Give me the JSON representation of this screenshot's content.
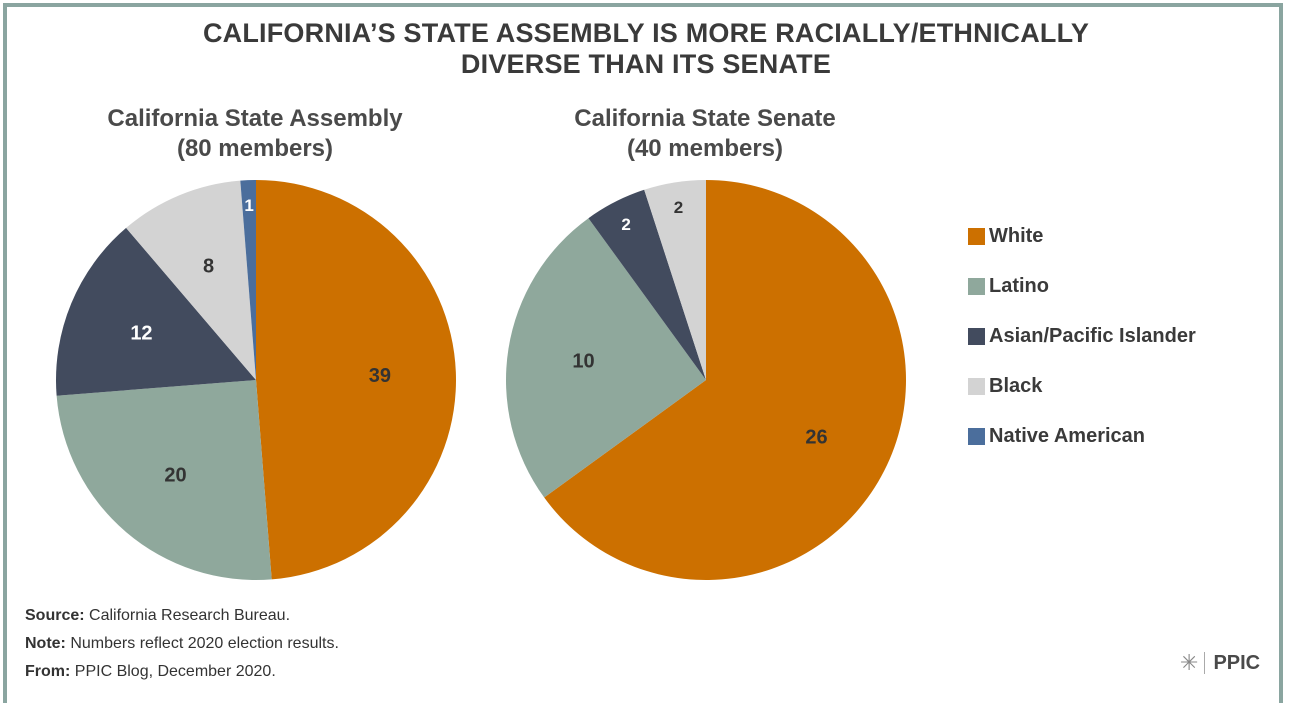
{
  "title_line1": "CALIFORNIA’S STATE ASSEMBLY IS MORE RACIALLY/ETHNICALLY",
  "title_line2": "DIVERSE THAN ITS SENATE",
  "colors": {
    "White": "#cc7000",
    "Latino": "#8fa89c",
    "Asian/Pacific Islander": "#424b5e",
    "Black": "#d3d3d3",
    "Native American": "#4b6e9c"
  },
  "chart_data": [
    {
      "type": "pie",
      "title": "California State Assembly",
      "subtitle": "(80 members)",
      "categories": [
        "White",
        "Latino",
        "Asian/Pacific Islander",
        "Black",
        "Native American"
      ],
      "values": [
        39,
        20,
        12,
        8,
        1
      ]
    },
    {
      "type": "pie",
      "title": "California State Senate",
      "subtitle": "(40 members)",
      "categories": [
        "White",
        "Latino",
        "Asian/Pacific Islander",
        "Black"
      ],
      "values": [
        26,
        10,
        2,
        2
      ]
    }
  ],
  "legend": [
    "White",
    "Latino",
    "Asian/Pacific Islander",
    "Black",
    "Native American"
  ],
  "notes": {
    "source_label": "Source:",
    "source_text": " California Research Bureau.",
    "note_label": "Note:",
    "note_text": " Numbers reflect 2020 election results.",
    "from_label": "From:",
    "from_text": " PPIC Blog, December 2020."
  },
  "logo_text": "PPIC",
  "logo_icon": "starburst-icon"
}
